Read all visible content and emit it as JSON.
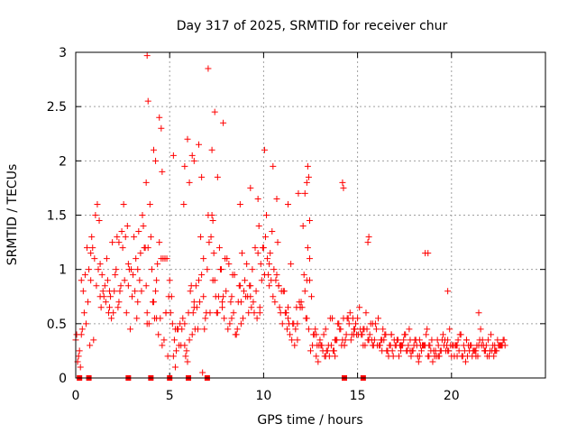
{
  "chart_data": {
    "type": "scatter",
    "title": "Day 317 of 2025, SRMTID for receiver chur",
    "xlabel": "GPS time / hours",
    "ylabel": "SRMTID / TECUs",
    "xlim": [
      0,
      25
    ],
    "ylim": [
      0,
      3
    ],
    "x_ticks": [
      0,
      5,
      10,
      15,
      20
    ],
    "x_tick_labels": [
      "0",
      "5",
      "10",
      "15",
      "20"
    ],
    "y_ticks": [
      0,
      0.5,
      1,
      1.5,
      2,
      2.5,
      3
    ],
    "y_tick_labels": [
      "0",
      "0.5",
      "1",
      "1.5",
      "2",
      "2.5",
      "3"
    ],
    "grid": true,
    "marker": "plus",
    "color": "#ff0000",
    "square_marker_x": [
      0.2,
      0.7,
      2.8,
      4.0,
      5.0,
      6.0,
      7.0,
      14.3,
      15.3
    ],
    "series": [
      {
        "name": "SRMTID",
        "x": [
          0.0,
          0.2,
          0.4,
          0.6,
          0.8,
          1.0,
          1.2,
          1.4,
          1.6,
          1.8,
          2.0,
          2.2,
          2.4,
          2.6,
          2.8,
          3.0,
          3.2,
          3.4,
          3.6,
          3.8,
          4.0,
          4.2,
          4.4,
          4.6,
          4.8,
          5.0,
          5.2,
          5.4,
          5.6,
          5.8,
          6.0,
          6.2,
          6.4,
          6.6,
          6.8,
          7.0,
          7.2,
          7.4,
          7.6,
          7.8,
          8.0,
          8.2,
          8.4,
          8.6,
          8.8,
          9.0,
          9.2,
          9.4,
          9.6,
          9.8,
          10.0,
          10.2,
          10.4,
          10.6,
          10.8,
          11.0,
          11.2,
          11.4,
          11.6,
          11.8,
          12.0,
          12.2,
          12.4,
          12.6,
          12.8,
          13.0,
          13.2,
          13.4,
          13.6,
          13.8,
          14.0,
          14.2,
          14.4,
          14.6,
          14.8,
          15.0,
          15.2,
          15.4,
          15.6,
          15.8,
          16.0,
          16.2,
          16.4,
          16.6,
          16.8,
          17.0,
          17.2,
          17.4,
          17.6,
          17.8,
          18.0,
          18.2,
          18.4,
          18.6,
          18.8,
          19.0,
          19.2,
          19.4,
          19.6,
          19.8,
          20.0,
          20.2,
          20.4,
          20.6,
          20.8,
          21.0,
          21.2,
          21.4,
          21.6,
          21.8,
          22.0,
          22.2,
          22.4,
          22.6,
          0.1,
          0.3,
          0.5,
          0.7,
          0.9,
          1.1,
          1.3,
          1.5,
          1.7,
          1.9,
          2.1,
          2.3,
          2.5,
          2.7,
          2.9,
          3.1,
          3.3,
          3.5,
          3.7,
          3.9,
          4.1,
          4.3,
          4.5,
          4.7,
          4.9,
          5.1,
          5.3,
          5.5,
          5.7,
          5.9,
          6.1,
          6.3,
          6.5,
          6.7,
          6.9,
          7.1,
          7.3,
          7.5,
          7.7,
          7.9,
          8.1,
          8.3,
          8.5,
          8.7,
          8.9,
          9.1,
          9.3,
          9.5,
          9.7,
          9.9,
          10.1,
          10.3,
          10.5,
          10.7,
          10.9,
          11.1,
          11.3,
          11.5,
          11.7,
          11.9,
          12.1,
          12.3,
          12.5,
          12.7,
          12.9,
          13.1,
          13.3,
          13.5,
          13.7,
          13.9,
          14.1,
          14.3,
          14.5,
          14.7,
          14.9,
          15.1,
          15.3,
          15.5,
          15.7,
          15.9,
          16.1,
          16.3,
          16.5,
          16.7,
          16.9,
          17.1,
          17.3,
          17.5,
          17.7,
          17.9,
          18.1,
          18.3,
          18.5,
          18.7,
          18.9,
          19.1,
          19.3,
          19.5,
          19.7,
          19.9,
          20.1,
          20.3,
          20.5,
          20.7,
          20.9,
          21.1,
          21.3,
          21.5,
          21.7,
          21.9,
          22.1,
          22.3,
          22.5,
          0.05,
          0.45,
          1.05,
          1.55,
          2.05,
          2.55,
          3.05,
          3.55,
          4.05,
          4.55,
          5.05,
          5.55,
          6.05,
          6.55,
          7.05,
          7.55,
          8.05,
          8.55,
          9.05,
          9.55,
          10.05,
          10.55,
          11.05,
          11.55,
          12.05,
          12.35,
          12.55,
          13.05,
          13.55,
          14.05,
          14.55,
          15.05,
          15.55,
          16.05,
          16.55,
          17.05,
          17.55,
          18.05,
          18.55,
          19.05,
          19.55,
          20.05,
          20.55,
          21.05,
          21.55,
          22.05,
          22.55,
          0.15,
          0.65,
          1.15,
          1.65,
          2.15,
          2.65,
          3.15,
          3.65,
          4.15,
          4.65,
          5.15,
          5.65,
          6.15,
          6.65,
          7.15,
          7.65,
          8.15,
          8.65,
          9.15,
          9.65,
          10.15,
          10.65,
          11.15,
          11.65,
          12.15,
          12.45,
          12.65,
          13.15,
          13.65,
          14.15,
          14.65,
          15.15,
          15.65,
          16.15,
          16.65,
          17.15,
          17.65,
          18.15,
          18.65,
          19.15,
          19.65,
          20.15,
          20.65,
          21.15,
          21.65,
          22.15,
          22.65,
          0.25,
          0.85,
          1.25,
          1.85,
          2.25,
          2.85,
          3.25,
          3.85,
          4.25,
          4.85,
          5.25,
          5.85,
          6.25,
          6.85,
          7.25,
          7.85,
          8.25,
          8.85,
          9.25,
          9.85,
          10.25,
          10.85,
          11.25,
          11.85,
          12.25,
          12.85,
          13.25,
          13.85,
          14.25,
          14.85,
          15.25,
          15.85,
          16.25,
          16.85,
          17.25,
          17.85,
          18.25,
          18.85,
          19.25,
          19.85,
          20.25,
          20.85,
          21.25,
          21.85,
          22.25,
          22.75,
          0.35,
          0.95,
          1.35,
          1.95,
          2.35,
          2.95,
          3.35,
          3.95,
          4.35,
          4.95,
          5.35,
          5.95,
          6.35,
          6.95,
          7.35,
          7.95,
          8.35,
          8.95,
          9.35,
          9.95,
          10.35,
          10.95,
          11.35,
          11.95,
          12.3,
          12.95,
          13.35,
          13.95,
          14.35,
          14.95,
          15.35,
          15.95,
          16.35,
          16.95,
          17.35,
          17.95,
          18.35,
          18.95,
          19.35,
          19.95,
          20.35,
          20.95,
          21.35,
          21.95,
          22.35,
          22.85,
          3.8,
          3.75,
          4.15,
          4.55,
          4.25,
          5.95,
          6.2,
          6.55,
          7.05,
          7.25,
          7.85,
          10.05,
          12.35,
          12.4,
          14.2,
          15.6,
          18.75,
          3.85,
          4.45,
          4.6,
          5.2,
          5.8,
          6.05,
          6.3,
          6.7,
          7.4,
          7.55,
          8.75,
          9.3,
          9.7,
          10.5,
          10.7,
          11.3,
          12.2,
          12.45,
          14.25,
          15.55,
          18.6,
          19.8,
          21.45,
          0.3,
          0.8,
          1.3,
          1.8,
          2.3,
          2.8,
          3.3,
          3.8,
          4.3,
          4.8,
          5.3,
          5.8,
          6.3,
          6.8,
          7.3,
          7.8,
          8.3,
          8.8,
          9.3,
          9.8,
          10.3,
          10.8,
          11.3,
          11.8,
          12.3,
          12.8,
          13.3,
          13.8,
          14.3,
          14.8,
          15.3,
          15.8,
          16.3,
          16.8,
          17.3,
          17.8,
          18.3,
          18.8,
          19.3,
          19.8,
          20.3,
          20.8,
          21.3,
          21.8,
          22.3,
          22.8,
          0.55,
          1.45,
          2.45,
          3.45,
          4.45,
          5.45,
          6.45,
          7.45,
          8.45,
          9.45,
          10.45,
          11.45,
          12.45,
          13.45,
          14.45,
          15.45,
          16.45,
          17.45,
          18.45,
          19.45,
          20.45,
          21.45,
          22.45,
          0.75,
          1.75,
          2.75,
          3.75,
          4.75,
          5.75,
          6.75,
          7.75,
          8.75,
          9.75,
          10.75,
          11.75,
          12.75,
          13.75,
          14.75,
          15.75,
          16.75,
          17.75,
          18.75,
          19.75,
          20.75,
          21.75,
          22.7
        ],
        "y": [
          0.35,
          0.25,
          0.8,
          1.2,
          0.9,
          1.1,
          1.0,
          0.95,
          0.7,
          0.8,
          0.6,
          1.3,
          0.85,
          0.9,
          1.05,
          0.75,
          1.1,
          0.9,
          1.4,
          0.6,
          1.3,
          0.55,
          0.4,
          0.3,
          0.6,
          0.9,
          0.2,
          0.45,
          0.3,
          0.5,
          0.6,
          0.4,
          0.85,
          0.7,
          1.1,
          1.0,
          1.3,
          0.9,
          0.75,
          0.7,
          0.8,
          0.5,
          0.6,
          0.45,
          0.7,
          0.9,
          0.6,
          1.0,
          0.8,
          0.65,
          1.2,
          1.1,
          0.9,
          0.7,
          0.85,
          0.5,
          0.6,
          0.4,
          0.5,
          0.35,
          0.7,
          0.8,
          0.45,
          0.3,
          0.2,
          0.35,
          0.4,
          0.25,
          0.3,
          0.2,
          0.5,
          0.35,
          0.4,
          0.6,
          0.45,
          0.55,
          0.4,
          0.3,
          0.35,
          0.5,
          0.45,
          0.3,
          0.35,
          0.25,
          0.4,
          0.3,
          0.2,
          0.3,
          0.25,
          0.35,
          0.3,
          0.2,
          0.25,
          0.3,
          0.2,
          0.15,
          0.2,
          0.25,
          0.3,
          0.35,
          0.2,
          0.3,
          0.25,
          0.2,
          0.35,
          0.3,
          0.25,
          0.2,
          0.3,
          0.25,
          0.2,
          0.3,
          0.25,
          0.3,
          0.15,
          0.4,
          0.95,
          1.0,
          1.2,
          0.85,
          1.05,
          0.75,
          0.9,
          0.55,
          0.95,
          0.7,
          1.2,
          0.6,
          0.45,
          1.3,
          1.0,
          0.8,
          1.2,
          0.5,
          0.7,
          0.9,
          0.55,
          0.35,
          0.2,
          0.75,
          0.1,
          0.3,
          0.55,
          0.25,
          0.8,
          0.65,
          0.45,
          0.95,
          0.55,
          1.25,
          1.45,
          0.6,
          1.0,
          0.55,
          0.45,
          0.75,
          0.4,
          0.85,
          0.55,
          1.05,
          0.75,
          0.6,
          1.15,
          0.9,
          1.3,
          0.85,
          0.75,
          0.95,
          0.6,
          0.8,
          0.55,
          0.35,
          0.45,
          0.7,
          1.4,
          0.55,
          0.25,
          0.4,
          0.15,
          0.3,
          0.45,
          0.2,
          0.25,
          0.35,
          0.45,
          0.3,
          0.55,
          0.4,
          0.5,
          0.65,
          0.3,
          0.45,
          0.5,
          0.35,
          0.55,
          0.25,
          0.4,
          0.3,
          0.2,
          0.35,
          0.25,
          0.4,
          0.3,
          0.25,
          0.35,
          0.2,
          0.3,
          0.45,
          0.25,
          0.2,
          0.3,
          0.35,
          0.25,
          0.45,
          0.3,
          0.2,
          0.4,
          0.25,
          0.3,
          0.2,
          0.25,
          0.35,
          0.3,
          0.2,
          0.4,
          0.25,
          0.3,
          0.4,
          0.6,
          1.5,
          0.85,
          0.8,
          1.6,
          0.95,
          1.5,
          1.0,
          1.1,
          0.6,
          0.5,
          0.35,
          0.9,
          1.5,
          0.6,
          1.1,
          0.4,
          0.75,
          1.2,
          0.95,
          1.0,
          0.8,
          0.5,
          0.65,
          1.2,
          0.75,
          0.3,
          0.55,
          0.45,
          0.5,
          0.4,
          0.35,
          0.3,
          0.25,
          0.3,
          0.4,
          0.35,
          0.3,
          0.25,
          0.4,
          0.3,
          0.2,
          0.3,
          0.45,
          0.25,
          0.3,
          0.2,
          0.7,
          1.6,
          1.1,
          1.0,
          1.3,
          0.8,
          1.2,
          0.7,
          1.1,
          0.5,
          0.45,
          0.85,
          1.3,
          0.6,
          1.2,
          1.05,
          0.7,
          0.75,
          0.55,
          1.5,
          0.9,
          0.6,
          0.3,
          0.95,
          1.1,
          0.4,
          0.25,
          0.55,
          0.3,
          0.35,
          0.45,
          0.4,
          0.3,
          0.2,
          0.35,
          0.25,
          0.3,
          0.4,
          0.25,
          0.35,
          0.2,
          0.3,
          0.25,
          0.35,
          0.25,
          0.3,
          0.1,
          1.3,
          1.45,
          0.75,
          0.65,
          1.0,
          0.55,
          1.2,
          0.8,
          1.1,
          0.35,
          0.2,
          0.6,
          0.45,
          1.5,
          0.75,
          0.7,
          1.15,
          0.85,
          1.05,
          0.95,
          0.65,
          0.45,
          1.7,
          0.55,
          0.3,
          0.2,
          0.35,
          0.55,
          0.45,
          0.4,
          0.3,
          0.35,
          0.25,
          0.3,
          0.2,
          0.15,
          0.3,
          0.35,
          0.25,
          0.3,
          0.2,
          0.25,
          0.3,
          0.2,
          0.35,
          0.45,
          0.35,
          0.65,
          1.25,
          0.8,
          1.0,
          1.35,
          1.6,
          1.05,
          0.75,
          0.25,
          0.15,
          0.45,
          0.6,
          1.15,
          1.1,
          0.95,
          0.8,
          0.65,
          1.2,
          1.15,
          0.8,
          0.5,
          0.65,
          1.8,
          0.3,
          0.25,
          0.5,
          0.35,
          0.4,
          0.45,
          0.5,
          0.45,
          0.35,
          0.3,
          0.25,
          0.3,
          0.35,
          0.2,
          0.3,
          0.35,
          0.25,
          0.3,
          0.35,
          0.25,
          0.3,
          2.97,
          1.8,
          2.1,
          2.3,
          2.0,
          2.2,
          2.05,
          2.15,
          2.85,
          2.1,
          2.35,
          2.1,
          1.95,
          1.85,
          1.8,
          1.3,
          1.15,
          2.55,
          2.4,
          1.9,
          2.05,
          1.95,
          1.8,
          2.0,
          1.85,
          2.45,
          1.85,
          1.6,
          1.75,
          1.65,
          1.95,
          1.65,
          1.6,
          1.7,
          1.45,
          1.75,
          1.25,
          1.15,
          0.8,
          0.6,
          0.9,
          1.15,
          0.75,
          0.65,
          1.25,
          0.85,
          0.7,
          0.5,
          0.55,
          0.6,
          0.45,
          0.3,
          0.7,
          0.75,
          0.9,
          0.65,
          0.55,
          0.5,
          0.85,
          0.6,
          1.05,
          0.85,
          0.65,
          0.5,
          0.9,
          0.4,
          0.2,
          0.35,
          0.3,
          0.4,
          0.45,
          0.3,
          0.35,
          0.4,
          0.3,
          0.25,
          0.35,
          0.3,
          0.2,
          0.25,
          0.3,
          0.35,
          0.2,
          0.25,
          0.3,
          0.35,
          0.5,
          0.8,
          1.35,
          1.15,
          1.25,
          0.45,
          0.65,
          0.75,
          0.95,
          0.7,
          1.35,
          1.05,
          0.9,
          0.3,
          0.55,
          0.6,
          0.4,
          0.35,
          0.3,
          0.25,
          0.4,
          0.3,
          0.35,
          0.3,
          0.6,
          1.4,
          0.85,
          1.1,
          1.6,
          0.05,
          1.0,
          0.85,
          1.4,
          1.25,
          0.65,
          0.45,
          0.25,
          0.55,
          0.35,
          0.3,
          0.45,
          0.2,
          0.3,
          0.15,
          0.25,
          0.3
        ]
      }
    ]
  }
}
